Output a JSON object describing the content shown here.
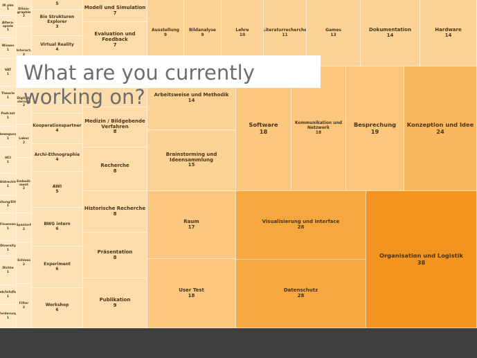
{
  "slide": {
    "question": "What are you currently working on?"
  },
  "chart_data": {
    "type": "treemap",
    "title": "",
    "items": [
      {
        "label": "IR plm",
        "value": 1,
        "color": "#fde9c4"
      },
      {
        "label": "Altera-spiele",
        "value": 1,
        "color": "#fde9c4"
      },
      {
        "label": "Wissen",
        "value": 1,
        "color": "#fde9c4"
      },
      {
        "label": "VAT",
        "value": 1,
        "color": "#fde9c4"
      },
      {
        "label": "Theorie",
        "value": 1,
        "color": "#fde9c4"
      },
      {
        "label": "Podcast",
        "value": 1,
        "color": "#fde9c4"
      },
      {
        "label": "Bewegung",
        "value": 1,
        "color": "#fde9c4"
      },
      {
        "label": "HCI",
        "value": 1,
        "color": "#fde9c4"
      },
      {
        "label": "Bildrechte",
        "value": 1,
        "color": "#fde9c4"
      },
      {
        "label": "Haltung/Ethik",
        "value": 1,
        "color": "#fde9c4"
      },
      {
        "label": "Finanzen",
        "value": 1,
        "color": "#fde9c4"
      },
      {
        "label": "Diversity",
        "value": 1,
        "color": "#fde9c4"
      },
      {
        "label": "Dichte",
        "value": 1,
        "color": "#fde9c4"
      },
      {
        "label": "Web/Infoflow",
        "value": 1,
        "color": "#fde9c4"
      },
      {
        "label": "Anforderungen",
        "value": 1,
        "color": "#fde9c4"
      },
      {
        "label": "Ethno-graphie",
        "value": 2,
        "color": "#fde6bf"
      },
      {
        "label": "Interact.",
        "value": 2,
        "color": "#fde6bf"
      },
      {
        "label": "Digitali-sierung",
        "value": 2,
        "color": "#fde6bf"
      },
      {
        "label": "Labor",
        "value": 2,
        "color": "#fde6bf"
      },
      {
        "label": "Embodi-ment",
        "value": 2,
        "color": "#fde6bf"
      },
      {
        "label": "Spanisch",
        "value": 2,
        "color": "#fde6bf"
      },
      {
        "label": "Schloss",
        "value": 2,
        "color": "#fde6bf"
      },
      {
        "label": "Filter",
        "value": 2,
        "color": "#fde6bf"
      },
      {
        "label": "",
        "value": 5,
        "color": "#fde2b6"
      },
      {
        "label": "Bio Strukturen Explorer",
        "value": 3,
        "color": "#fde2b6"
      },
      {
        "label": "Virtual Reality",
        "value": 4,
        "color": "#fde2b6"
      },
      {
        "label": "",
        "value": 3,
        "color": "#fde2b6"
      },
      {
        "label": "Kooperationspartner",
        "value": 4,
        "color": "#fde2b6"
      },
      {
        "label": "Archi-Ethnographie",
        "value": 4,
        "color": "#fde2b6"
      },
      {
        "label": "AWI",
        "value": 5,
        "color": "#fde2b6"
      },
      {
        "label": "BWG intern",
        "value": 6,
        "color": "#fde2b6"
      },
      {
        "label": "Experiment",
        "value": 6,
        "color": "#fde2b6"
      },
      {
        "label": "Workshop",
        "value": 6,
        "color": "#fde2b6"
      },
      {
        "label": "Modell und Simulation",
        "value": 7,
        "color": "#fddca9"
      },
      {
        "label": "Evaluation und Feedback",
        "value": 7,
        "color": "#fddca9"
      },
      {
        "label": "",
        "value": 7,
        "color": "#fddca9"
      },
      {
        "label": "Medizin / Bildgebende Verfahren",
        "value": 8,
        "color": "#fddca9"
      },
      {
        "label": "Recherche",
        "value": 8,
        "color": "#fddca9"
      },
      {
        "label": "Historische Recherche",
        "value": 8,
        "color": "#fddca9"
      },
      {
        "label": "Präsentation",
        "value": 8,
        "color": "#fddca9"
      },
      {
        "label": "Publikation",
        "value": 9,
        "color": "#fddca9"
      },
      {
        "label": "Ausstellung",
        "value": 9,
        "color": "#fcd394"
      },
      {
        "label": "Bildanalyse",
        "value": 9,
        "color": "#fcd394"
      },
      {
        "label": "Lehre",
        "value": 10,
        "color": "#fcd394"
      },
      {
        "label": "Literaturrecherche",
        "value": 11,
        "color": "#fcd394"
      },
      {
        "label": "Games",
        "value": 13,
        "color": "#fcd394"
      },
      {
        "label": "Dokumentation",
        "value": 14,
        "color": "#fcd394"
      },
      {
        "label": "Hardware",
        "value": 14,
        "color": "#fcd394"
      },
      {
        "label": "Arbeitsweise und Methodik",
        "value": 14,
        "color": "#fcd394"
      },
      {
        "label": "Brainstorming und Ideensammlung",
        "value": 15,
        "color": "#fcd394"
      },
      {
        "label": "Raum",
        "value": 17,
        "color": "#fbc67d"
      },
      {
        "label": "User Test",
        "value": 18,
        "color": "#fbc67d"
      },
      {
        "label": "Software",
        "value": 18,
        "color": "#fbc67d"
      },
      {
        "label": "Kommunikation und Netzwerk",
        "value": 18,
        "color": "#fbc67d"
      },
      {
        "label": "Besprechung",
        "value": 19,
        "color": "#fbc67d"
      },
      {
        "label": "Konzeption und Idee",
        "value": 24,
        "color": "#f9b75e"
      },
      {
        "label": "Visualisierung und Interface",
        "value": 28,
        "color": "#f6a73f"
      },
      {
        "label": "Datenschutz",
        "value": 28,
        "color": "#f6a73f"
      },
      {
        "label": "Organisation und Logistik",
        "value": 38,
        "color": "#f39421"
      }
    ]
  }
}
